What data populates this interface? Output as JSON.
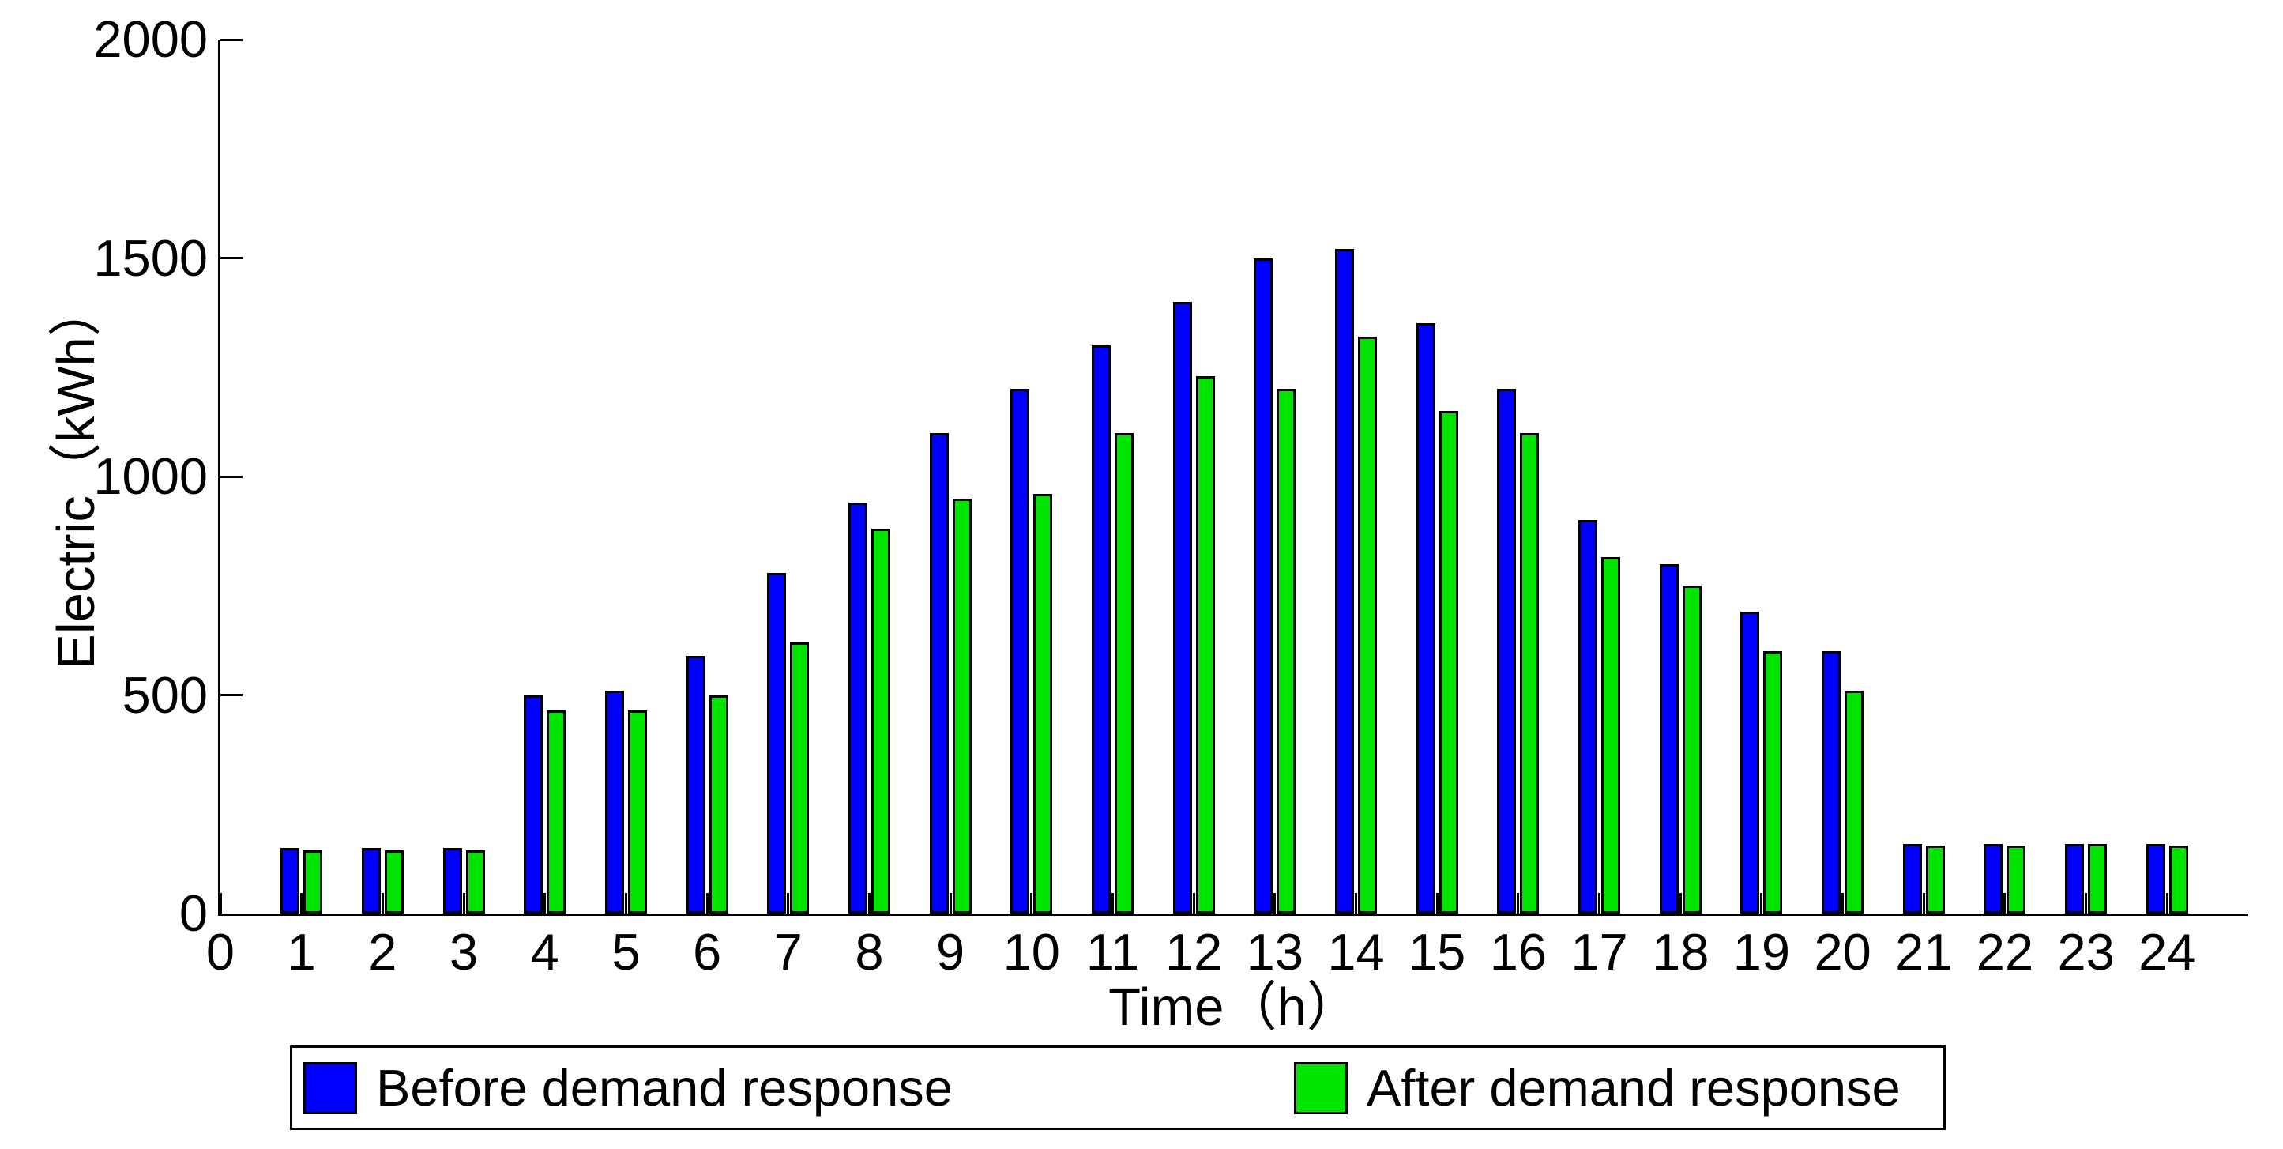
{
  "chart_data": {
    "type": "bar",
    "title": "",
    "xlabel": "Time（h）",
    "ylabel": "Electric（kWh）",
    "categories": [
      1,
      2,
      3,
      4,
      5,
      6,
      7,
      8,
      9,
      10,
      11,
      12,
      13,
      14,
      15,
      16,
      17,
      18,
      19,
      20,
      21,
      22,
      23,
      24
    ],
    "series": [
      {
        "name": "Before demand response",
        "color": "#0000ff",
        "values": [
          150,
          150,
          150,
          500,
          510,
          590,
          780,
          940,
          1100,
          1200,
          1300,
          1400,
          1500,
          1520,
          1350,
          1200,
          900,
          800,
          690,
          600,
          160,
          160,
          160,
          160
        ]
      },
      {
        "name": "After demand response",
        "color": "#00e400",
        "values": [
          145,
          145,
          145,
          465,
          465,
          500,
          620,
          880,
          950,
          960,
          1100,
          1230,
          1200,
          1320,
          1150,
          1100,
          815,
          750,
          600,
          510,
          155,
          155,
          160,
          155
        ]
      }
    ],
    "xticks": [
      0,
      1,
      2,
      3,
      4,
      5,
      6,
      7,
      8,
      9,
      10,
      11,
      12,
      13,
      14,
      15,
      16,
      17,
      18,
      19,
      20,
      21,
      22,
      23,
      24
    ],
    "yticks": [
      0,
      500,
      1000,
      1500,
      2000
    ],
    "xlim": [
      0,
      25
    ],
    "ylim": [
      0,
      2000
    ],
    "grid": false,
    "legend_position": "bottom",
    "bar_edge_color": "#000000",
    "background_color": "#ffffff"
  }
}
